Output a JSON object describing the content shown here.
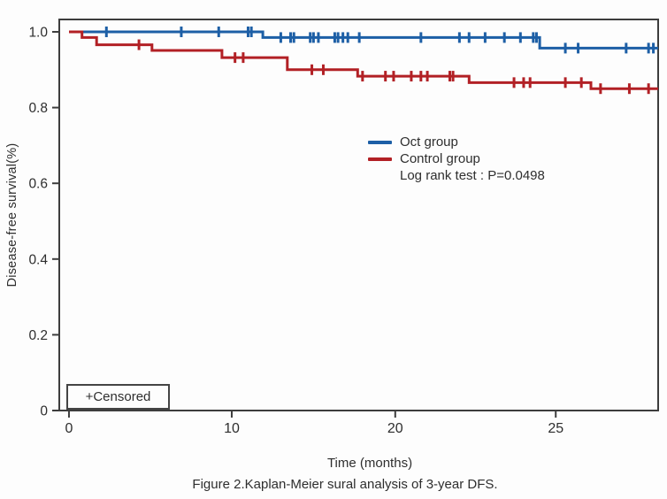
{
  "figure": {
    "caption": "Figure 2.Kaplan-Meier sural analysis of 3-year DFS.",
    "background_color": "#fdfdfd",
    "axis_color": "#3d3d3d",
    "text_color": "#2e2e2e"
  },
  "legend": {
    "items": [
      {
        "label": "Oct group",
        "color": "#1d5fa6"
      },
      {
        "label": "Control group",
        "color": "#b22025"
      }
    ],
    "note": "Log rank test : P=0.0498"
  },
  "chart_data": {
    "type": "line",
    "subtype": "kaplan-meier-step",
    "title": "",
    "xlabel": "Time (months)",
    "ylabel": "Disease-free survival(%)",
    "xlim": [
      0,
      28.2
    ],
    "ylim": [
      0,
      1.0
    ],
    "grid": false,
    "legend_position": "center-right",
    "censored_box_label": "+Censored",
    "x_ticks": [
      {
        "t": 0,
        "label": "0"
      },
      {
        "t": 10,
        "label": "10"
      },
      {
        "t": 20,
        "label": "20"
      },
      {
        "t": 25,
        "label": "25"
      }
    ],
    "y_ticks": [
      {
        "v": 1.0,
        "label": "1.0"
      },
      {
        "v": 0.8,
        "label": "0.8"
      },
      {
        "v": 0.6,
        "label": "0.6"
      },
      {
        "v": 0.4,
        "label": "0.4"
      },
      {
        "v": 0.2,
        "label": "0.2"
      },
      {
        "v": 0.0,
        "label": "0"
      }
    ],
    "x_scale_anchors": {
      "t": [
        0,
        10,
        20,
        25,
        28.2
      ],
      "frac": [
        0.0162,
        0.288,
        0.561,
        0.829,
        1.0
      ]
    },
    "series": [
      {
        "name": "Oct group",
        "color": "#1d5fa6",
        "end_t": 28.2,
        "steps": [
          [
            0,
            1.0
          ],
          [
            11.9,
            0.985
          ],
          [
            24.5,
            0.957
          ]
        ],
        "censor_times": [
          2.3,
          6.9,
          9.2,
          11.0,
          11.2,
          13.0,
          13.6,
          13.8,
          14.8,
          15.0,
          15.3,
          16.3,
          16.5,
          16.8,
          17.1,
          17.8,
          20.8,
          22.0,
          22.3,
          22.8,
          23.4,
          23.9,
          24.3,
          24.4,
          25.3,
          25.7,
          27.2,
          27.9,
          28.05
        ]
      },
      {
        "name": "Control group",
        "color": "#b22025",
        "end_t": 28.2,
        "steps": [
          [
            0,
            1.0
          ],
          [
            0.8,
            0.985
          ],
          [
            1.7,
            0.966
          ],
          [
            5.1,
            0.951
          ],
          [
            9.4,
            0.932
          ],
          [
            13.4,
            0.9
          ],
          [
            17.7,
            0.883
          ],
          [
            22.3,
            0.866
          ],
          [
            26.1,
            0.85
          ]
        ],
        "censor_times": [
          4.3,
          10.2,
          10.7,
          14.9,
          15.6,
          18.0,
          19.4,
          19.9,
          20.5,
          20.8,
          21.0,
          21.7,
          21.8,
          23.7,
          24.0,
          24.2,
          25.3,
          25.8,
          26.4,
          27.3,
          27.9
        ]
      }
    ]
  }
}
